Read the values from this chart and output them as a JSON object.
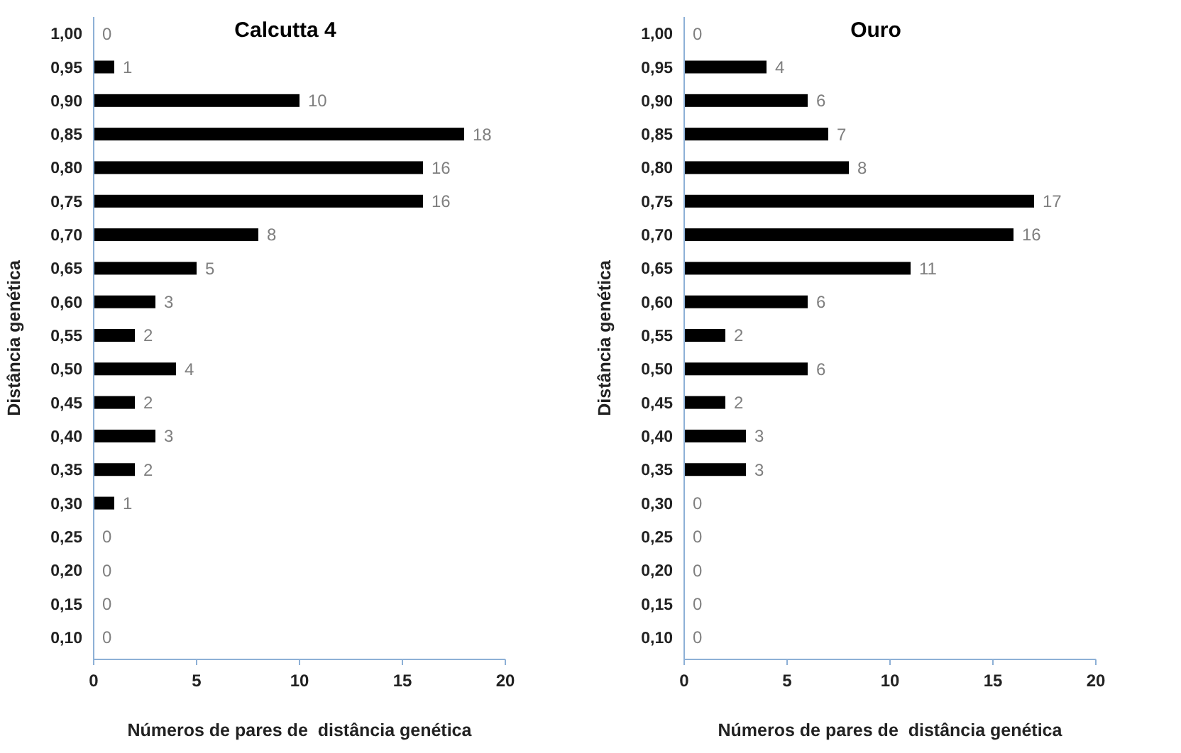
{
  "chart_data": [
    {
      "type": "bar",
      "orientation": "horizontal",
      "title": "Calcutta 4",
      "xlabel": "Números de pares de  distância genética",
      "ylabel": "Distância genética",
      "categories": [
        "1,00",
        "0,95",
        "0,90",
        "0,85",
        "0,80",
        "0,75",
        "0,70",
        "0,65",
        "0,60",
        "0,55",
        "0,50",
        "0,45",
        "0,40",
        "0,35",
        "0,30",
        "0,25",
        "0,20",
        "0,15",
        "0,10"
      ],
      "values": [
        0,
        1,
        10,
        18,
        16,
        16,
        8,
        5,
        3,
        2,
        4,
        2,
        3,
        2,
        1,
        0,
        0,
        0,
        0
      ],
      "color": "#000000",
      "xlim": [
        0,
        20
      ],
      "xticks": [
        0,
        5,
        10,
        15,
        20
      ],
      "data_labels": true,
      "grid": false
    },
    {
      "type": "bar",
      "orientation": "horizontal",
      "title": "Ouro",
      "xlabel": "Números de pares de  distância genética",
      "ylabel": "Distância genética",
      "categories": [
        "1,00",
        "0,95",
        "0,90",
        "0,85",
        "0,80",
        "0,75",
        "0,70",
        "0,65",
        "0,60",
        "0,55",
        "0,50",
        "0,45",
        "0,40",
        "0,35",
        "0,30",
        "0,25",
        "0,20",
        "0,15",
        "0,10"
      ],
      "values": [
        0,
        4,
        6,
        7,
        8,
        17,
        16,
        11,
        6,
        2,
        6,
        2,
        3,
        3,
        0,
        0,
        0,
        0,
        0
      ],
      "color": "#000000",
      "xlim": [
        0,
        20
      ],
      "xticks": [
        0,
        5,
        10,
        15,
        20
      ],
      "data_labels": true,
      "grid": false
    }
  ]
}
